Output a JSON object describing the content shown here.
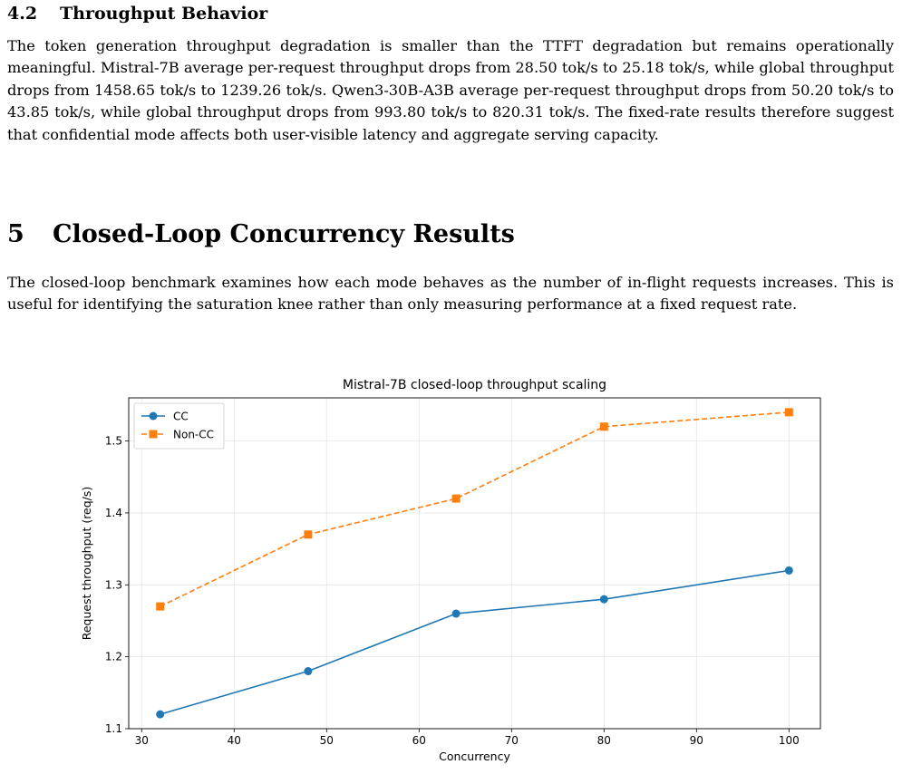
{
  "subsection": {
    "number": "4.2",
    "title": "Throughput Behavior",
    "paragraph": "The token generation throughput degradation is smaller than the TTFT degradation but remains operationally meaningful. Mistral-7B average per-request throughput drops from 28.50 tok/s to 25.18 tok/s, while global throughput drops from 1458.65 tok/s to 1239.26 tok/s. Qwen3-30B-A3B average per-request throughput drops from 50.20 tok/s to 43.85 tok/s, while global throughput drops from 993.80 tok/s to 820.31 tok/s. The fixed-rate results therefore suggest that confidential mode affects both user-visible latency and aggregate serving capacity."
  },
  "section": {
    "number": "5",
    "title": "Closed-Loop Concurrency Results",
    "paragraph": "The closed-loop benchmark examines how each mode behaves as the number of in-flight requests increases. This is useful for identifying the saturation knee rather than only measuring performance at a fixed request rate."
  },
  "chart_data": {
    "type": "line",
    "title": "Mistral-7B closed-loop throughput scaling",
    "xlabel": "Concurrency",
    "ylabel": "Request throughput (req/s)",
    "x": [
      32,
      48,
      64,
      80,
      100
    ],
    "xlim": [
      28.6,
      103.4
    ],
    "ylim": [
      1.1,
      1.56
    ],
    "xticks": [
      30,
      40,
      50,
      60,
      70,
      80,
      90,
      100
    ],
    "yticks": [
      1.1,
      1.2,
      1.3,
      1.4,
      1.5
    ],
    "ytick_labels": [
      "1.1",
      "1.2",
      "1.3",
      "1.4",
      "1.5"
    ],
    "grid": true,
    "legend_position": "top-left",
    "series": [
      {
        "name": "CC",
        "values": [
          1.12,
          1.18,
          1.26,
          1.28,
          1.32
        ],
        "color": "#1f77b4",
        "marker": "circle",
        "line_style": "solid"
      },
      {
        "name": "Non-CC",
        "values": [
          1.27,
          1.37,
          1.42,
          1.52,
          1.54
        ],
        "color": "#ff7f0e",
        "marker": "square",
        "line_style": "dashed"
      }
    ]
  }
}
